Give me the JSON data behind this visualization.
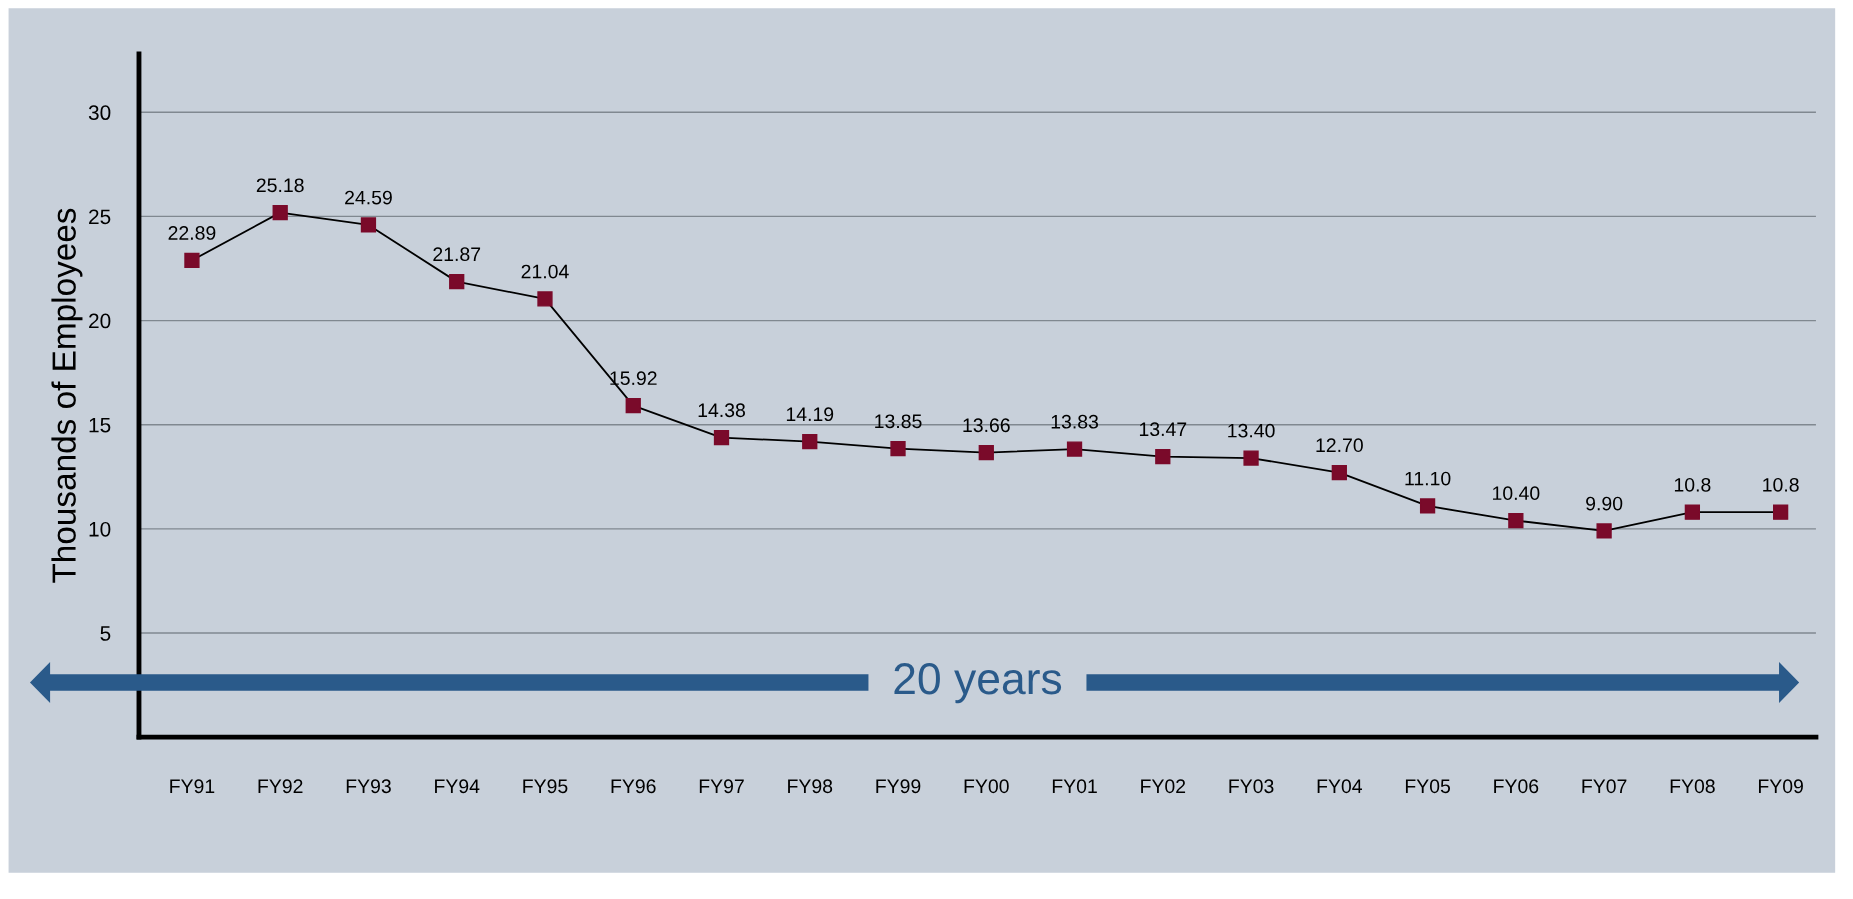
{
  "chart_data": {
    "type": "line",
    "ylabel": "Thousands of Employees",
    "categories": [
      "FY91",
      "FY92",
      "FY93",
      "FY94",
      "FY95",
      "FY96",
      "FY97",
      "FY98",
      "FY99",
      "FY00",
      "FY01",
      "FY02",
      "FY03",
      "FY04",
      "FY05",
      "FY06",
      "FY07",
      "FY08",
      "FY09"
    ],
    "series": [
      {
        "color": "#7a0a2a",
        "values": [
          22.89,
          25.18,
          24.59,
          21.87,
          21.04,
          15.92,
          14.38,
          14.19,
          13.85,
          13.66,
          13.83,
          13.47,
          13.4,
          12.7,
          11.1,
          10.4,
          9.9,
          10.8,
          10.8
        ],
        "value_labels": [
          "22.89",
          "25.18",
          "24.59",
          "21.87",
          "21.04",
          "15.92",
          "14.38",
          "14.19",
          "13.85",
          "13.66",
          "13.83",
          "13.47",
          "13.40",
          "12.70",
          "11.10",
          "10.40",
          "9.90",
          "10.8",
          "10.8"
        ]
      }
    ],
    "ylim": [
      0,
      32.8
    ],
    "yticks": [
      5,
      10,
      15,
      20,
      25,
      30
    ],
    "grid": "y",
    "marker": "square",
    "line_style": "solid",
    "annotations": [
      "20 years"
    ]
  }
}
